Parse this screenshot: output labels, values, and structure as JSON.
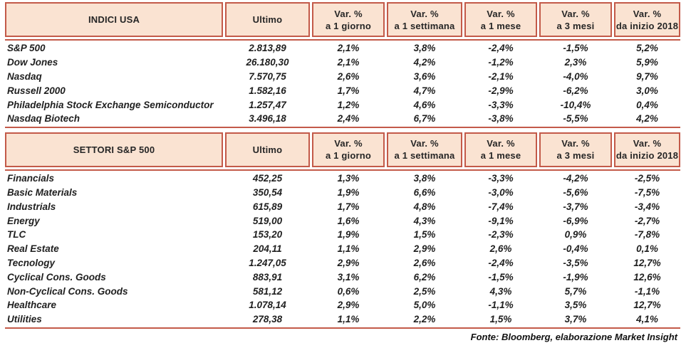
{
  "colors": {
    "accent_border": "#c35a49",
    "header_fill": "#fae3d2",
    "text": "#1f1f1f"
  },
  "footer": {
    "text": "Fonte: Bloomberg, elaborazione Market Insight"
  },
  "tables": [
    {
      "title": "INDICI USA",
      "headers": [
        {
          "line1": "INDICI USA",
          "line2": ""
        },
        {
          "line1": "Ultimo",
          "line2": ""
        },
        {
          "line1": "Var. %",
          "line2": "a 1 giorno"
        },
        {
          "line1": "Var. %",
          "line2": "a 1 settimana"
        },
        {
          "line1": "Var. %",
          "line2": "a 1 mese"
        },
        {
          "line1": "Var. %",
          "line2": "a 3 mesi"
        },
        {
          "line1": "Var. %",
          "line2": "da inizio 2018"
        }
      ],
      "rows": [
        {
          "name": "S&P 500",
          "values": [
            "2.813,89",
            "2,1%",
            "3,8%",
            "-2,4%",
            "-1,5%",
            "5,2%"
          ]
        },
        {
          "name": "Dow Jones",
          "values": [
            "26.180,30",
            "2,1%",
            "4,2%",
            "-1,2%",
            "2,3%",
            "5,9%"
          ]
        },
        {
          "name": "Nasdaq",
          "values": [
            "7.570,75",
            "2,6%",
            "3,6%",
            "-2,1%",
            "-4,0%",
            "9,7%"
          ]
        },
        {
          "name": "Russell 2000",
          "values": [
            "1.582,16",
            "1,7%",
            "4,7%",
            "-2,9%",
            "-6,2%",
            "3,0%"
          ]
        },
        {
          "name": "Philadelphia Stock Exchange Semiconductor",
          "values": [
            "1.257,47",
            "1,2%",
            "4,6%",
            "-3,3%",
            "-10,4%",
            "0,4%"
          ]
        },
        {
          "name": "Nasdaq Biotech",
          "values": [
            "3.496,18",
            "2,4%",
            "6,7%",
            "-3,8%",
            "-5,5%",
            "4,2%"
          ]
        }
      ]
    },
    {
      "title": "SETTORI S&P 500",
      "headers": [
        {
          "line1": "SETTORI S&P 500",
          "line2": ""
        },
        {
          "line1": "Ultimo",
          "line2": ""
        },
        {
          "line1": "Var. %",
          "line2": "a 1 giorno"
        },
        {
          "line1": "Var. %",
          "line2": "a 1 settimana"
        },
        {
          "line1": "Var. %",
          "line2": "a 1 mese"
        },
        {
          "line1": "Var. %",
          "line2": "a 3 mesi"
        },
        {
          "line1": "Var. %",
          "line2": "da inizio 2018"
        }
      ],
      "rows": [
        {
          "name": "Financials",
          "values": [
            "452,25",
            "1,3%",
            "3,8%",
            "-3,3%",
            "-4,2%",
            "-2,5%"
          ]
        },
        {
          "name": "Basic Materials",
          "values": [
            "350,54",
            "1,9%",
            "6,6%",
            "-3,0%",
            "-5,6%",
            "-7,5%"
          ]
        },
        {
          "name": "Industrials",
          "values": [
            "615,89",
            "1,7%",
            "4,8%",
            "-7,4%",
            "-3,7%",
            "-3,4%"
          ]
        },
        {
          "name": "Energy",
          "values": [
            "519,00",
            "1,6%",
            "4,3%",
            "-9,1%",
            "-6,9%",
            "-2,7%"
          ]
        },
        {
          "name": "TLC",
          "values": [
            "153,20",
            "1,9%",
            "1,5%",
            "-2,3%",
            "0,9%",
            "-7,8%"
          ]
        },
        {
          "name": "Real Estate",
          "values": [
            "204,11",
            "1,1%",
            "2,9%",
            "2,6%",
            "-0,4%",
            "0,1%"
          ]
        },
        {
          "name": "Tecnology",
          "values": [
            "1.247,05",
            "2,9%",
            "2,6%",
            "-2,4%",
            "-3,5%",
            "12,7%"
          ]
        },
        {
          "name": "Cyclical Cons. Goods",
          "values": [
            "883,91",
            "3,1%",
            "6,2%",
            "-1,5%",
            "-1,9%",
            "12,6%"
          ]
        },
        {
          "name": "Non-Cyclical Cons. Goods",
          "values": [
            "581,12",
            "0,6%",
            "2,5%",
            "4,3%",
            "5,7%",
            "-1,1%"
          ]
        },
        {
          "name": "Healthcare",
          "values": [
            "1.078,14",
            "2,9%",
            "5,0%",
            "-1,1%",
            "3,5%",
            "12,7%"
          ]
        },
        {
          "name": "Utilities",
          "values": [
            "278,38",
            "1,1%",
            "2,2%",
            "1,5%",
            "3,7%",
            "4,1%"
          ]
        }
      ]
    }
  ]
}
